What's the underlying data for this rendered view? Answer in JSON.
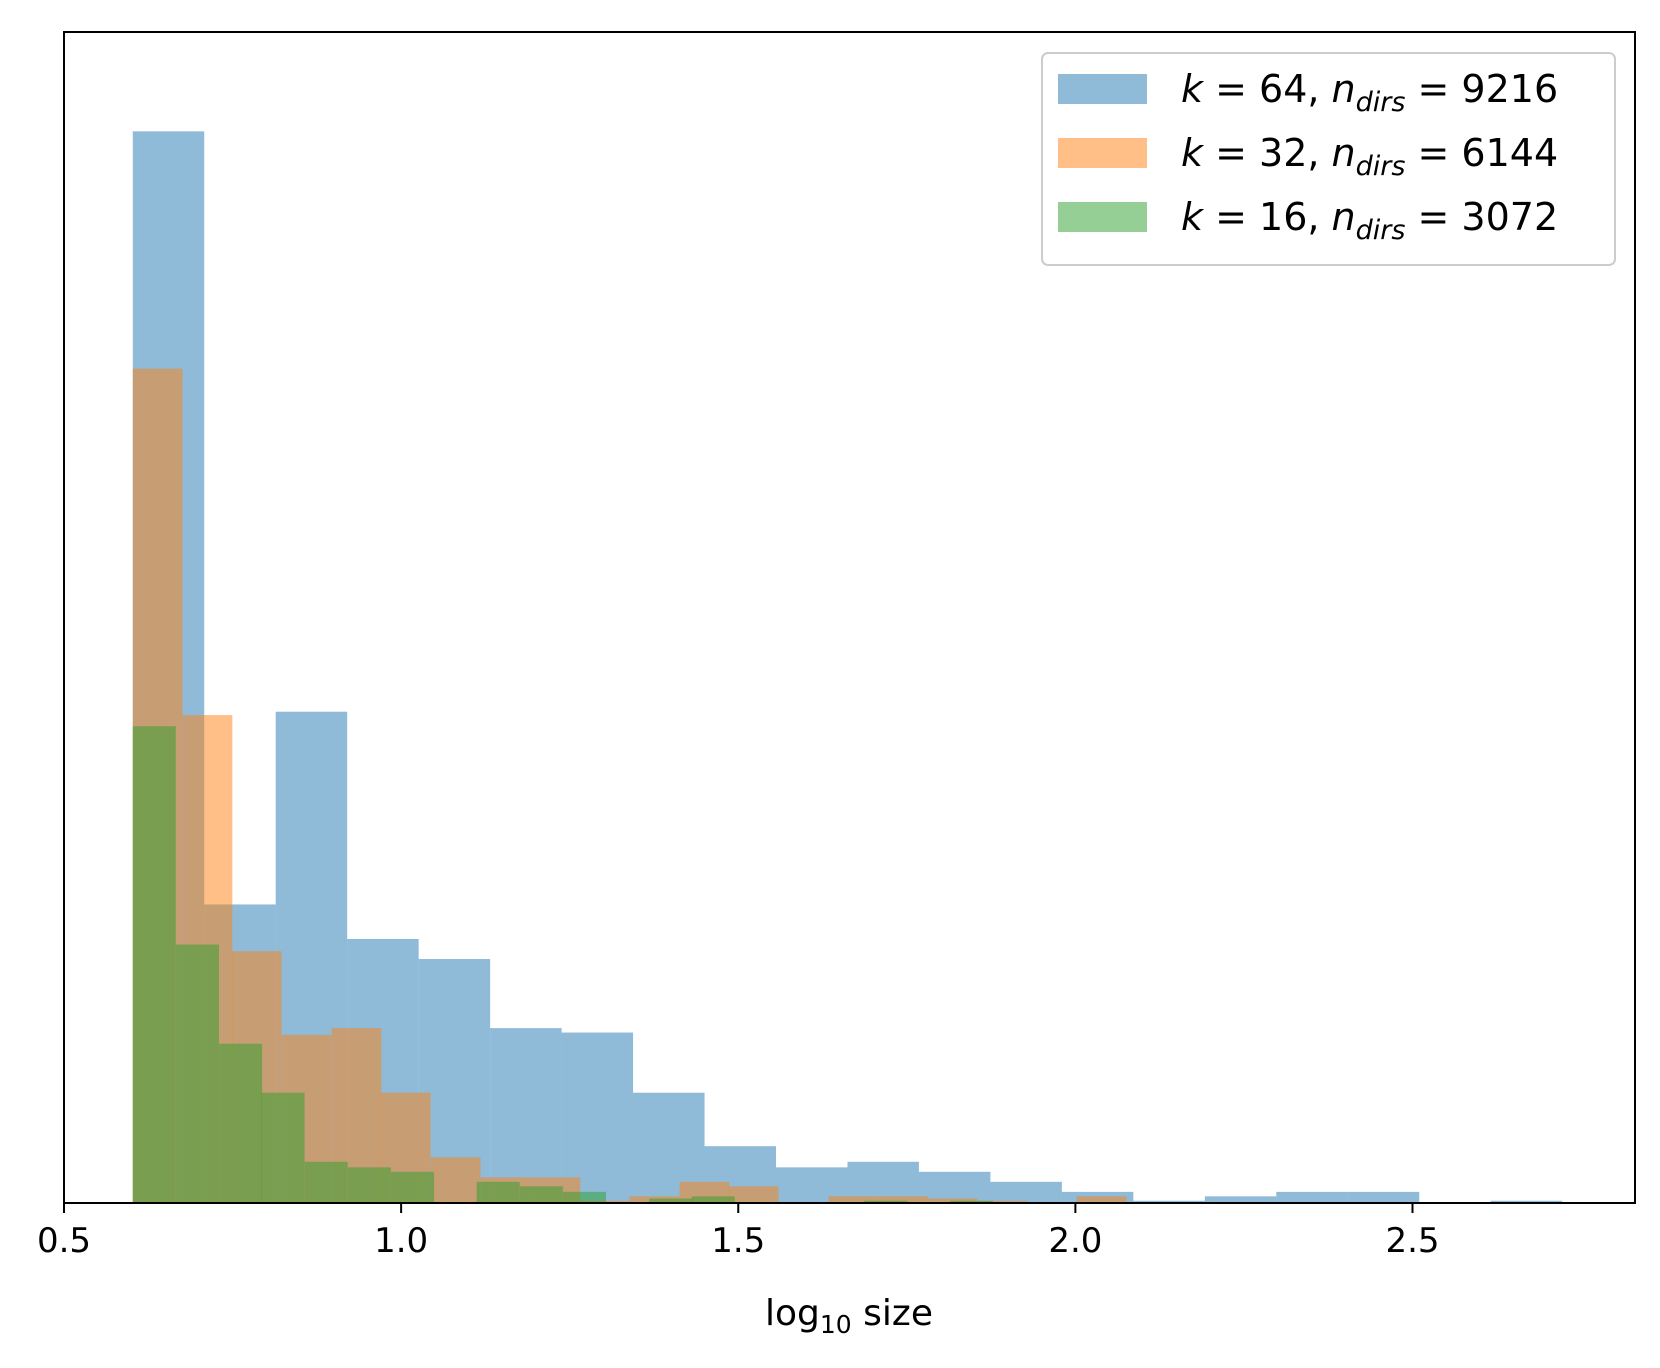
{
  "chart_data": {
    "type": "histogram",
    "xlabel": {
      "main": "log",
      "sub": "10",
      "rest": " size"
    },
    "ylabel": "",
    "xlim": [
      0.5,
      2.83
    ],
    "ylim": [
      0,
      1.0
    ],
    "y_ticks_shown": false,
    "xticks": [
      {
        "value": 0.5,
        "label": "0.5"
      },
      {
        "value": 1.0,
        "label": "1.0"
      },
      {
        "value": 1.5,
        "label": "1.5"
      },
      {
        "value": 2.0,
        "label": "2.0"
      },
      {
        "value": 2.5,
        "label": "2.5"
      }
    ],
    "grid": false,
    "legend_position": "top-right",
    "series": [
      {
        "legend": {
          "k": "64",
          "n": "9216"
        },
        "color": "#1f77b4",
        "alpha": 0.5,
        "bin_width": 0.106,
        "bins": [
          {
            "x0": 0.602,
            "v": 0.962
          },
          {
            "x0": 0.708,
            "v": 0.268
          },
          {
            "x0": 0.814,
            "v": 0.441
          },
          {
            "x0": 0.92,
            "v": 0.237
          },
          {
            "x0": 1.026,
            "v": 0.219
          },
          {
            "x0": 1.132,
            "v": 0.157
          },
          {
            "x0": 1.238,
            "v": 0.153
          },
          {
            "x0": 1.344,
            "v": 0.099
          },
          {
            "x0": 1.45,
            "v": 0.051
          },
          {
            "x0": 1.556,
            "v": 0.032
          },
          {
            "x0": 1.662,
            "v": 0.037
          },
          {
            "x0": 1.768,
            "v": 0.028
          },
          {
            "x0": 1.874,
            "v": 0.019
          },
          {
            "x0": 1.98,
            "v": 0.01
          },
          {
            "x0": 2.086,
            "v": 0.002
          },
          {
            "x0": 2.192,
            "v": 0.006
          },
          {
            "x0": 2.298,
            "v": 0.01
          },
          {
            "x0": 2.404,
            "v": 0.01
          },
          {
            "x0": 2.51,
            "v": 0.0
          },
          {
            "x0": 2.616,
            "v": 0.002
          }
        ]
      },
      {
        "legend": {
          "k": "32",
          "n": "6144"
        },
        "color": "#ff7f0e",
        "alpha": 0.5,
        "bin_width": 0.0737,
        "bins": [
          {
            "x0": 0.602,
            "v": 0.749
          },
          {
            "x0": 0.676,
            "v": 0.438
          },
          {
            "x0": 0.749,
            "v": 0.226
          },
          {
            "x0": 0.823,
            "v": 0.151
          },
          {
            "x0": 0.897,
            "v": 0.157
          },
          {
            "x0": 0.97,
            "v": 0.099
          },
          {
            "x0": 1.044,
            "v": 0.041
          },
          {
            "x0": 1.118,
            "v": 0.023
          },
          {
            "x0": 1.192,
            "v": 0.023
          },
          {
            "x0": 1.265,
            "v": 0.002
          },
          {
            "x0": 1.339,
            "v": 0.006
          },
          {
            "x0": 1.413,
            "v": 0.019
          },
          {
            "x0": 1.486,
            "v": 0.015
          },
          {
            "x0": 1.56,
            "v": 0.0
          },
          {
            "x0": 1.634,
            "v": 0.006
          },
          {
            "x0": 1.708,
            "v": 0.006
          },
          {
            "x0": 1.781,
            "v": 0.004
          },
          {
            "x0": 1.855,
            "v": 0.002
          },
          {
            "x0": 1.929,
            "v": 0.0
          },
          {
            "x0": 2.002,
            "v": 0.006
          }
        ]
      },
      {
        "legend": {
          "k": "16",
          "n": "3072"
        },
        "color": "#2ca02c",
        "alpha": 0.5,
        "bin_width": 0.0638,
        "bins": [
          {
            "x0": 0.602,
            "v": 0.428
          },
          {
            "x0": 0.666,
            "v": 0.232
          },
          {
            "x0": 0.73,
            "v": 0.143
          },
          {
            "x0": 0.793,
            "v": 0.099
          },
          {
            "x0": 0.857,
            "v": 0.037
          },
          {
            "x0": 0.921,
            "v": 0.032
          },
          {
            "x0": 0.985,
            "v": 0.028
          },
          {
            "x0": 1.049,
            "v": 0.0
          },
          {
            "x0": 1.112,
            "v": 0.019
          },
          {
            "x0": 1.176,
            "v": 0.015
          },
          {
            "x0": 1.24,
            "v": 0.01
          },
          {
            "x0": 1.304,
            "v": 0.0
          },
          {
            "x0": 1.368,
            "v": 0.004
          },
          {
            "x0": 1.431,
            "v": 0.006
          },
          {
            "x0": 1.495,
            "v": 0.0
          },
          {
            "x0": 1.559,
            "v": 0.0
          },
          {
            "x0": 1.623,
            "v": 0.0
          },
          {
            "x0": 1.687,
            "v": 0.002
          },
          {
            "x0": 1.75,
            "v": 0.0
          },
          {
            "x0": 1.814,
            "v": 0.002
          }
        ]
      }
    ]
  }
}
